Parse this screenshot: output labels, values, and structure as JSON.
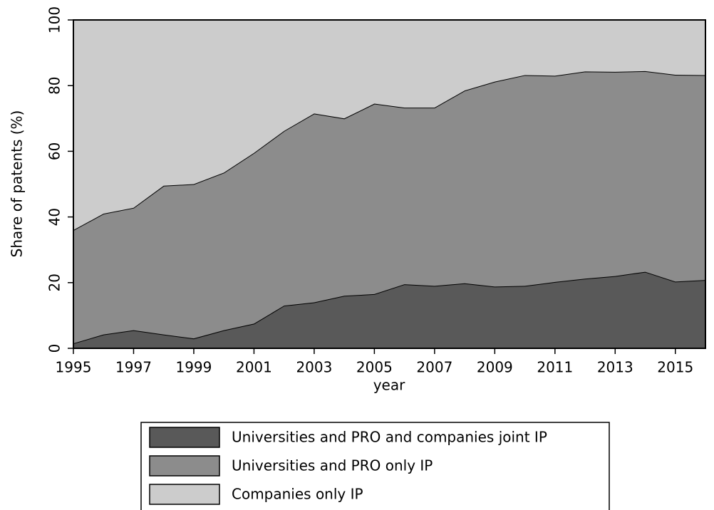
{
  "chart_data": {
    "type": "stacked-area",
    "x_label": "year",
    "y_label": "Share of patents (%)",
    "x": [
      1995,
      1996,
      1997,
      1998,
      1999,
      2000,
      2001,
      2002,
      2003,
      2004,
      2005,
      2006,
      2007,
      2008,
      2009,
      2010,
      2011,
      2012,
      2013,
      2014,
      2015,
      2016
    ],
    "xlim": [
      1995,
      2016
    ],
    "xticks": [
      1995,
      1997,
      1999,
      2001,
      2003,
      2005,
      2007,
      2009,
      2011,
      2013,
      2015
    ],
    "ylim": [
      0,
      100
    ],
    "yticks": [
      0,
      20,
      40,
      60,
      80,
      100
    ],
    "legend": "bottom",
    "series": [
      {
        "name": "Universities and PRO and companies joint IP",
        "color": "#595959",
        "values": [
          1.5,
          4.2,
          5.5,
          4.2,
          3.0,
          5.5,
          7.5,
          13,
          14,
          16,
          16.5,
          19.5,
          19,
          19.8,
          18.8,
          19,
          20.2,
          21.2,
          22,
          23.3,
          20.3,
          20.8
        ]
      },
      {
        "name": "Universities and PRO only IP",
        "color": "#8c8c8c",
        "values": [
          34.5,
          36.8,
          37.3,
          45.3,
          47,
          48,
          52,
          53.2,
          57.5,
          54,
          58,
          53.8,
          54.3,
          58.7,
          62.4,
          64.2,
          62.8,
          63.1,
          62.2,
          61.1,
          63,
          62.4
        ]
      },
      {
        "name": "Companies only IP",
        "color": "#cccccc",
        "values": [
          64,
          59,
          57.2,
          50.5,
          50,
          46.5,
          40.5,
          33.8,
          28.5,
          30,
          25.5,
          26.7,
          26.7,
          21.5,
          18.8,
          16.8,
          17,
          15.7,
          15.8,
          15.6,
          16.7,
          16.8
        ]
      }
    ]
  }
}
